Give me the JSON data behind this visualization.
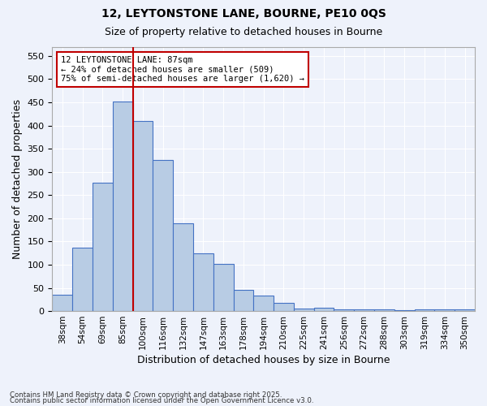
{
  "title1": "12, LEYTONSTONE LANE, BOURNE, PE10 0QS",
  "title2": "Size of property relative to detached houses in Bourne",
  "xlabel": "Distribution of detached houses by size in Bourne",
  "ylabel": "Number of detached properties",
  "categories": [
    "38sqm",
    "54sqm",
    "69sqm",
    "85sqm",
    "100sqm",
    "116sqm",
    "132sqm",
    "147sqm",
    "163sqm",
    "178sqm",
    "194sqm",
    "210sqm",
    "225sqm",
    "241sqm",
    "256sqm",
    "272sqm",
    "288sqm",
    "303sqm",
    "319sqm",
    "334sqm",
    "350sqm"
  ],
  "values": [
    35,
    137,
    277,
    452,
    410,
    325,
    190,
    125,
    102,
    45,
    33,
    18,
    6,
    8,
    4,
    4,
    4,
    2,
    4,
    4,
    4
  ],
  "bar_color": "#b8cce4",
  "bar_edge_color": "#4472c4",
  "vline_x": 3.5,
  "vline_color": "#c00000",
  "annotation_title": "12 LEYTONSTONE LANE: 87sqm",
  "annotation_line1": "← 24% of detached houses are smaller (509)",
  "annotation_line2": "75% of semi-detached houses are larger (1,620) →",
  "annotation_box_color": "#c00000",
  "background_color": "#eef2fb",
  "grid_color": "#ffffff",
  "ylim": [
    0,
    570
  ],
  "yticks": [
    0,
    50,
    100,
    150,
    200,
    250,
    300,
    350,
    400,
    450,
    500,
    550
  ],
  "footer1": "Contains HM Land Registry data © Crown copyright and database right 2025.",
  "footer2": "Contains public sector information licensed under the Open Government Licence v3.0."
}
